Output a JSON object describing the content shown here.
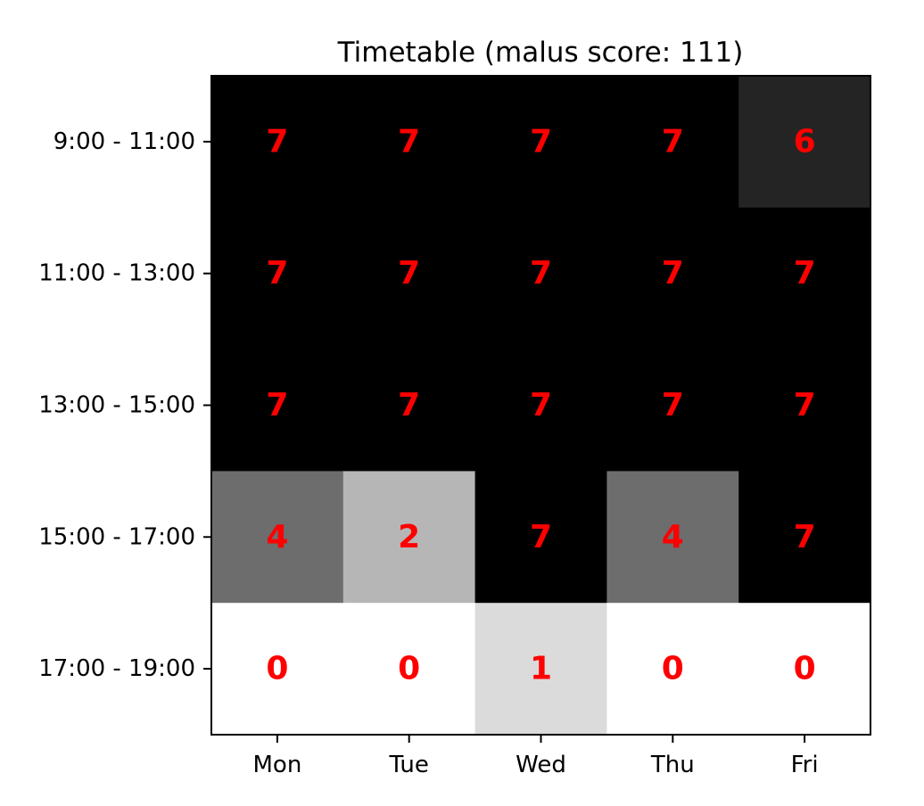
{
  "chart_data": {
    "type": "heatmap",
    "title": "Timetable (malus score: 111)",
    "x_categories": [
      "Mon",
      "Tue",
      "Wed",
      "Thu",
      "Fri"
    ],
    "y_categories": [
      "9:00 - 11:00",
      "11:00 - 13:00",
      "13:00 - 15:00",
      "15:00 - 17:00",
      "17:00 - 19:00"
    ],
    "values": [
      [
        7,
        7,
        7,
        7,
        6
      ],
      [
        7,
        7,
        7,
        7,
        7
      ],
      [
        7,
        7,
        7,
        7,
        7
      ],
      [
        4,
        2,
        7,
        4,
        7
      ],
      [
        0,
        0,
        1,
        0,
        0
      ]
    ],
    "value_range": [
      0,
      7
    ],
    "colormap": "gray_r",
    "annotation_color": "#ff0000",
    "xlabel": "",
    "ylabel": "",
    "grid": false
  }
}
